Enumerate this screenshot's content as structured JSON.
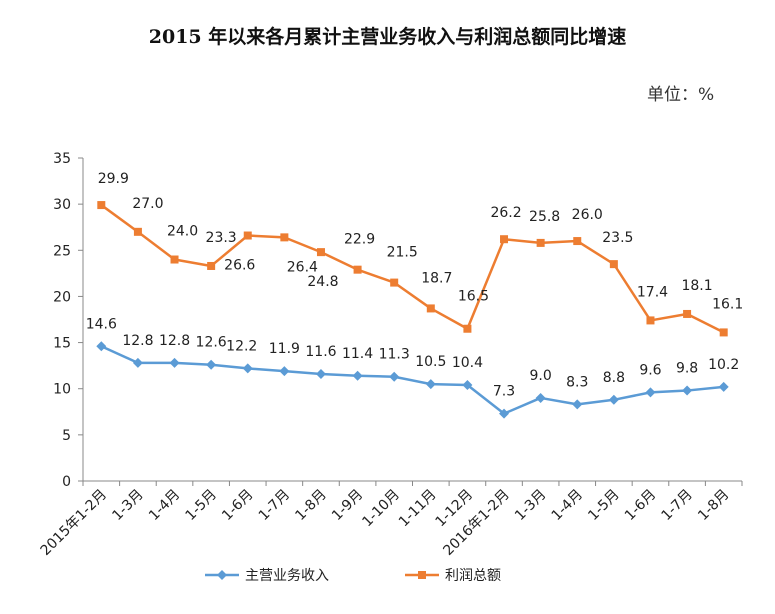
{
  "title": "2015 年以来各月累计主营业务收入与利润总额同比增速",
  "unit": "单位：%",
  "chart_data": {
    "type": "line",
    "title": "2015 年以来各月累计主营业务收入与利润总额同比增速",
    "unit": "单位：%",
    "categories": [
      "2015年1-2月",
      "1-3月",
      "1-4月",
      "1-5月",
      "1-6月",
      "1-7月",
      "1-8月",
      "1-9月",
      "1-10月",
      "1-11月",
      "1-12月",
      "2016年1-2月",
      "1-3月",
      "1-4月",
      "1-5月",
      "1-6月",
      "1-7月",
      "1-8月"
    ],
    "y_ticks": [
      0,
      5,
      10,
      15,
      20,
      25,
      30,
      35
    ],
    "ylim": [
      0,
      35
    ],
    "grid": false,
    "legend_position": "bottom",
    "series": [
      {
        "name": "主营业务收入",
        "color": "#5B9BD5",
        "marker": "diamond",
        "values": [
          14.6,
          12.8,
          12.8,
          12.6,
          12.2,
          11.9,
          11.6,
          11.4,
          11.3,
          10.5,
          10.4,
          7.3,
          9.0,
          8.3,
          8.8,
          9.6,
          9.8,
          10.2
        ]
      },
      {
        "name": "利润总额",
        "color": "#ED7D31",
        "marker": "square",
        "values": [
          29.9,
          27.0,
          24.0,
          23.3,
          26.6,
          26.4,
          24.8,
          22.9,
          21.5,
          18.7,
          16.5,
          26.2,
          25.8,
          26.0,
          23.5,
          17.4,
          18.1,
          16.1
        ]
      }
    ]
  }
}
